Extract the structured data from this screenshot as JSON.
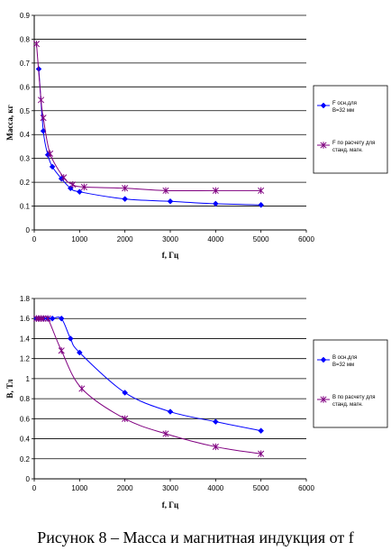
{
  "caption": "Рисунок 8 – Масса и магнитная индукция от f",
  "colors": {
    "series1": "#0000ff",
    "series2": "#800080"
  },
  "chart_data": [
    {
      "type": "line",
      "ylabel": "Масса, кг",
      "xlabel": "f, Гц",
      "xlim": [
        0,
        6000
      ],
      "ylim": [
        0,
        0.9
      ],
      "xticks": [
        0,
        1000,
        2000,
        3000,
        4000,
        5000,
        6000
      ],
      "yticks": [
        0,
        0.1,
        0.2,
        0.3,
        0.4,
        0.5,
        0.6,
        0.7,
        0.8,
        0.9
      ],
      "grid": "horizontal",
      "legend": "right",
      "series": [
        {
          "name": "F осн.для B=32 мм",
          "marker": "diamond",
          "x": [
            100,
            200,
            300,
            400,
            600,
            800,
            1000,
            2000,
            3000,
            4000,
            5000
          ],
          "y": [
            0.675,
            0.415,
            0.315,
            0.265,
            0.215,
            0.175,
            0.16,
            0.13,
            0.12,
            0.11,
            0.105
          ]
        },
        {
          "name": "F по расчету для станд. магн.",
          "marker": "star",
          "x": [
            50,
            150,
            200,
            350,
            650,
            850,
            1100,
            2000,
            2900,
            4000,
            5000
          ],
          "y": [
            0.78,
            0.545,
            0.47,
            0.32,
            0.22,
            0.19,
            0.18,
            0.175,
            0.165,
            0.165,
            0.165
          ]
        }
      ]
    },
    {
      "type": "line",
      "ylabel": "B, Тл",
      "xlabel": "f, Гц",
      "xlim": [
        0,
        6000
      ],
      "ylim": [
        0,
        1.8
      ],
      "xticks": [
        0,
        1000,
        2000,
        3000,
        4000,
        5000,
        6000
      ],
      "yticks": [
        0,
        0.2,
        0.4,
        0.6,
        0.8,
        1.0,
        1.2,
        1.4,
        1.6,
        1.8
      ],
      "grid": "horizontal",
      "legend": "right",
      "series": [
        {
          "name": "B осн.для B=32 мм",
          "marker": "diamond",
          "x": [
            50,
            100,
            200,
            300,
            400,
            600,
            800,
            1000,
            2000,
            3000,
            4000,
            5000
          ],
          "y": [
            1.6,
            1.6,
            1.6,
            1.6,
            1.6,
            1.6,
            1.4,
            1.26,
            0.86,
            0.67,
            0.57,
            0.48
          ]
        },
        {
          "name": "B по расчету для станд. магн.",
          "marker": "star",
          "x": [
            50,
            100,
            150,
            200,
            300,
            600,
            1050,
            2000,
            2900,
            4000,
            5000
          ],
          "y": [
            1.6,
            1.6,
            1.6,
            1.6,
            1.6,
            1.28,
            0.9,
            0.6,
            0.45,
            0.32,
            0.25
          ]
        }
      ]
    }
  ]
}
